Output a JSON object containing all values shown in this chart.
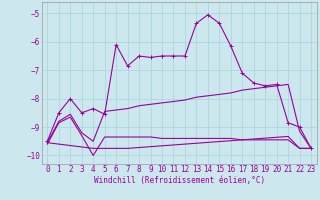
{
  "xlabel": "Windchill (Refroidissement éolien,°C)",
  "bg_color": "#cce8ee",
  "line_color": "#990099",
  "grid_color": "#aad8dd",
  "xlim": [
    -0.5,
    23.5
  ],
  "ylim": [
    -10.3,
    -4.6
  ],
  "yticks": [
    -10,
    -9,
    -8,
    -7,
    -6,
    -5
  ],
  "xticks": [
    0,
    1,
    2,
    3,
    4,
    5,
    6,
    7,
    8,
    9,
    10,
    11,
    12,
    13,
    14,
    15,
    16,
    17,
    18,
    19,
    20,
    21,
    22,
    23
  ],
  "curve1_x": [
    0,
    1,
    2,
    3,
    4,
    5,
    6,
    7,
    8,
    9,
    10,
    11,
    12,
    13,
    14,
    15,
    16,
    17,
    18,
    19,
    20,
    21,
    22,
    23
  ],
  "curve1_y": [
    -9.5,
    -8.5,
    -8.0,
    -8.5,
    -8.35,
    -8.55,
    -6.1,
    -6.85,
    -6.5,
    -6.55,
    -6.5,
    -6.5,
    -6.5,
    -5.35,
    -5.05,
    -5.35,
    -6.15,
    -7.1,
    -7.45,
    -7.55,
    -7.5,
    -8.85,
    -9.0,
    -9.75
  ],
  "curve2_x": [
    0,
    1,
    2,
    3,
    4,
    5,
    6,
    7,
    8,
    9,
    10,
    11,
    12,
    13,
    14,
    15,
    16,
    17,
    18,
    19,
    20,
    21,
    22,
    23
  ],
  "curve2_y": [
    -9.55,
    -8.8,
    -8.55,
    -9.2,
    -9.5,
    -8.45,
    -8.4,
    -8.35,
    -8.25,
    -8.2,
    -8.15,
    -8.1,
    -8.05,
    -7.95,
    -7.9,
    -7.85,
    -7.8,
    -7.7,
    -7.65,
    -7.6,
    -7.55,
    -7.5,
    -9.15,
    -9.75
  ],
  "curve3_x": [
    0,
    1,
    2,
    3,
    4,
    5,
    6,
    7,
    8,
    9,
    10,
    11,
    12,
    13,
    14,
    15,
    16,
    17,
    18,
    19,
    20,
    21,
    22,
    23
  ],
  "curve3_y": [
    -9.55,
    -9.6,
    -9.65,
    -9.7,
    -9.75,
    -9.75,
    -9.75,
    -9.75,
    -9.72,
    -9.69,
    -9.66,
    -9.63,
    -9.6,
    -9.57,
    -9.54,
    -9.51,
    -9.48,
    -9.45,
    -9.42,
    -9.39,
    -9.36,
    -9.33,
    -9.75,
    -9.75
  ],
  "curve4_x": [
    0,
    1,
    2,
    3,
    4,
    5,
    6,
    7,
    8,
    9,
    10,
    11,
    12,
    13,
    14,
    15,
    16,
    17,
    18,
    19,
    20,
    21,
    22,
    23
  ],
  "curve4_y": [
    -9.6,
    -8.85,
    -8.65,
    -9.3,
    -10.0,
    -9.35,
    -9.35,
    -9.35,
    -9.35,
    -9.35,
    -9.4,
    -9.4,
    -9.4,
    -9.4,
    -9.4,
    -9.4,
    -9.4,
    -9.45,
    -9.45,
    -9.45,
    -9.45,
    -9.45,
    -9.75,
    -9.75
  ]
}
